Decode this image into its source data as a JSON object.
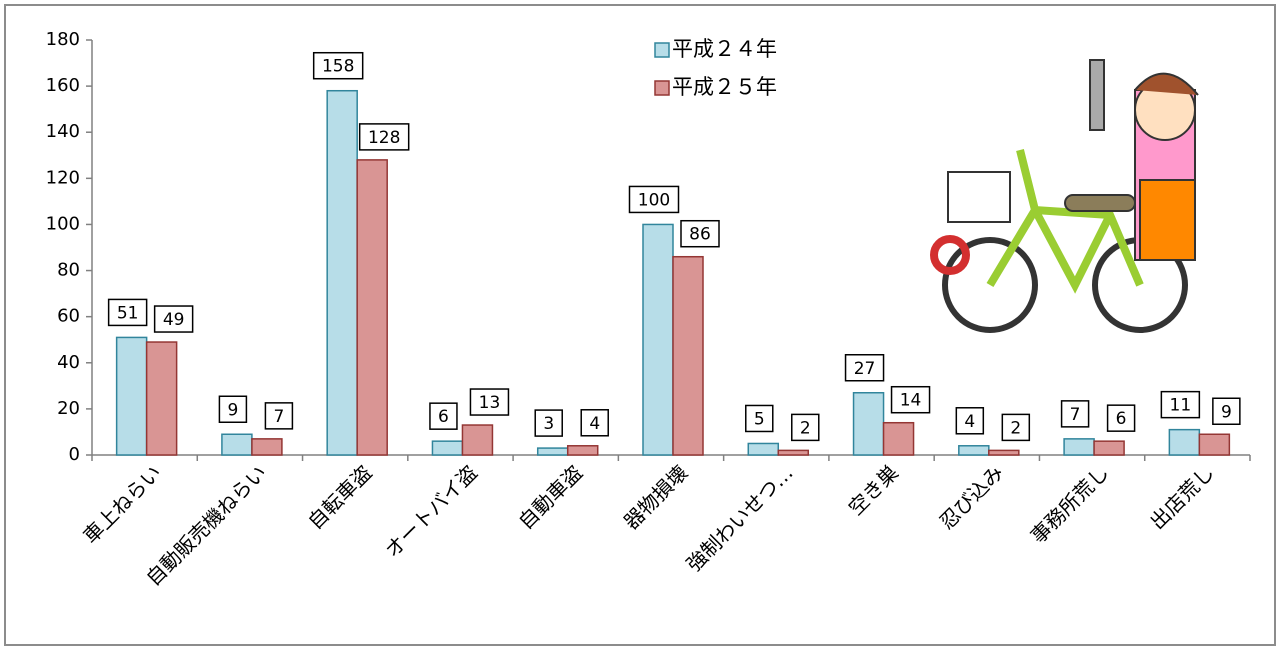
{
  "chart_data": {
    "type": "bar",
    "categories": [
      "車上ねらい",
      "自動販売機ねらい",
      "自転車盗",
      "オートバイ盗",
      "自動車盗",
      "器物損壊",
      "強制わいせつ…",
      "空き巣",
      "忍び込み",
      "事務所荒し",
      "出店荒し"
    ],
    "series": [
      {
        "name": "平成２４年",
        "color": "#b7dde8",
        "values": [
          51,
          9,
          158,
          6,
          3,
          100,
          5,
          27,
          4,
          7,
          11
        ]
      },
      {
        "name": "平成２５年",
        "color": "#d99594",
        "values": [
          49,
          7,
          128,
          13,
          4,
          86,
          2,
          14,
          2,
          6,
          9
        ]
      }
    ],
    "ylim": [
      0,
      180
    ],
    "yticks": [
      0,
      20,
      40,
      60,
      80,
      100,
      120,
      140,
      160,
      180
    ],
    "grid": false
  }
}
